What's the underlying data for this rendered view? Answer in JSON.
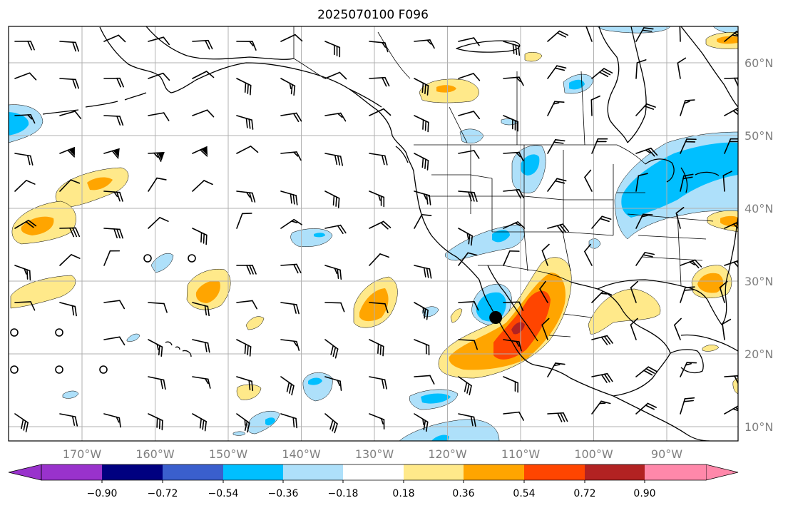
{
  "title": "2025070100 F096",
  "map": {
    "lon_ticks": [
      "170°W",
      "160°W",
      "150°W",
      "140°W",
      "130°W",
      "120°W",
      "110°W",
      "100°W",
      "90°W"
    ],
    "lat_ticks": [
      "60°N",
      "50°N",
      "40°N",
      "30°N",
      "20°N",
      "10°N"
    ],
    "marker": {
      "name": "point-marker",
      "lon": -113.4,
      "lat": 25.0
    }
  },
  "colorbar": {
    "ticks": [
      "−0.90",
      "−0.72",
      "−0.54",
      "−0.36",
      "−0.18",
      "0.18",
      "0.36",
      "0.54",
      "0.72",
      "0.90"
    ],
    "colors": [
      "#9932cc",
      "#000080",
      "#3a5fcd",
      "#00bfff",
      "#aee0fa",
      "#ffffff",
      "#ffe98a",
      "#ffa500",
      "#ff4500",
      "#b22222",
      "#ff88aa"
    ],
    "extend": "both"
  },
  "colors": {
    "neg1": "#aee0fa",
    "neg2": "#00bfff",
    "pos1": "#ffe98a",
    "pos2": "#ffa500",
    "pos3": "#ff4500",
    "pos4": "#b22222"
  }
}
